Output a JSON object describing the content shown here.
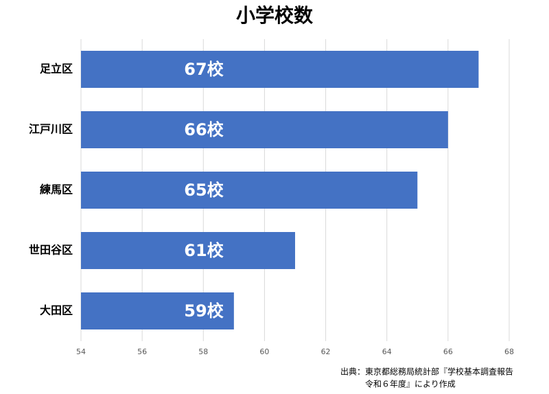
{
  "chart_data": {
    "type": "bar",
    "title": "小学校数",
    "categories": [
      "足立区",
      "江戸川区",
      "練馬区",
      "世田谷区",
      "大田区"
    ],
    "values": [
      67,
      66,
      65,
      61,
      59
    ],
    "value_labels": [
      "67校",
      "66校",
      "65校",
      "61校",
      "59校"
    ],
    "color": "#4472c4",
    "xlim": [
      54,
      68
    ],
    "xticks": [
      54,
      56,
      58,
      60,
      62,
      64,
      66,
      68
    ],
    "grid": true,
    "source": [
      "出典：東京都総務局統計部『学校基本調査報告",
      "令和６年度』により作成"
    ]
  }
}
